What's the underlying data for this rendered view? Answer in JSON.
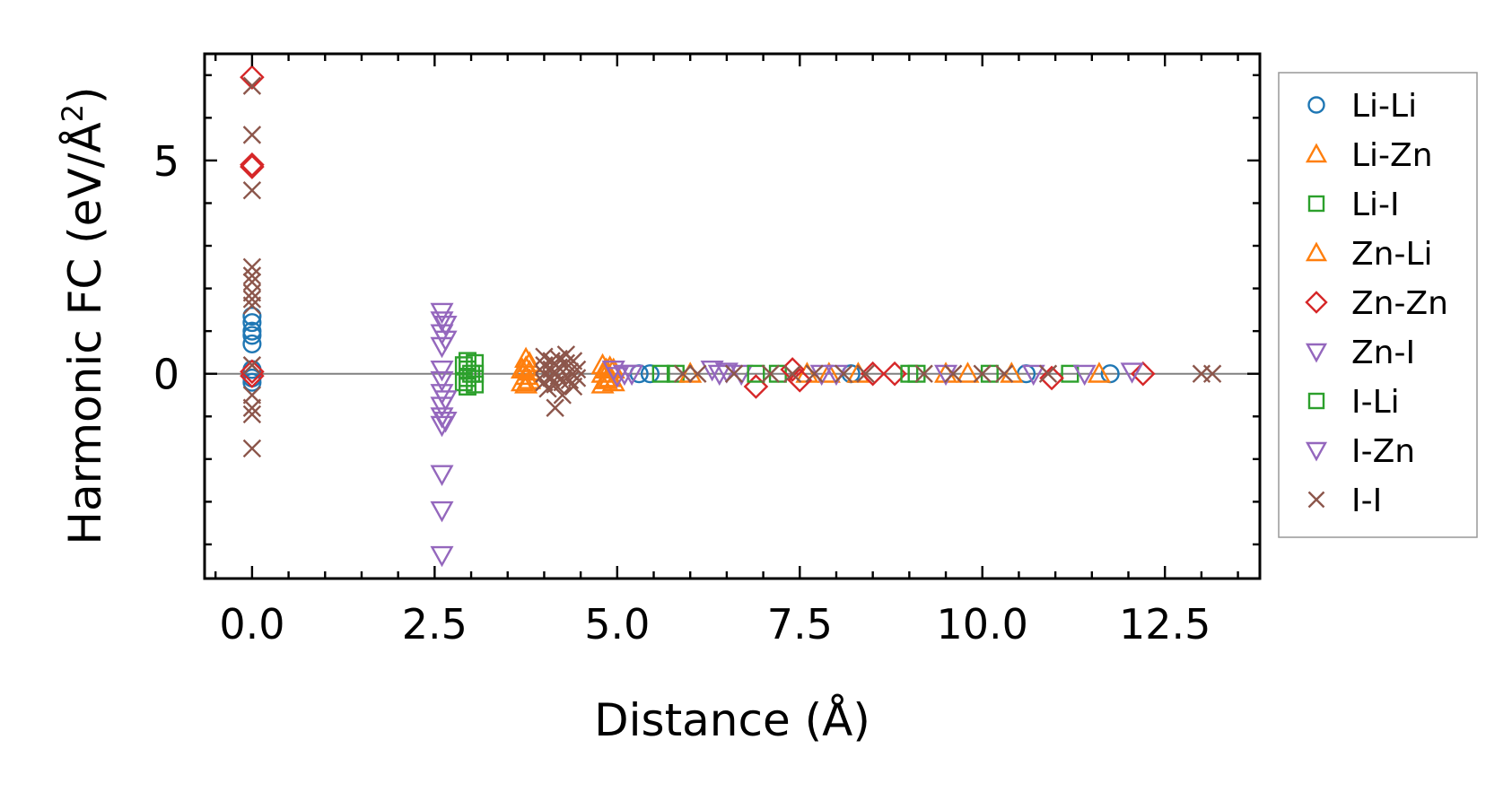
{
  "chart_data": {
    "type": "scatter",
    "xlabel": "Distance (Å)",
    "ylabel": {
      "prefix": "Harmonic FC (eV/Å",
      "sup": "2",
      "suffix": ")"
    },
    "xlim": [
      -0.65,
      13.8
    ],
    "ylim": [
      -4.8,
      7.5
    ],
    "xticks": [
      {
        "value": 0.0,
        "label": "0.0"
      },
      {
        "value": 2.5,
        "label": "2.5"
      },
      {
        "value": 5.0,
        "label": "5.0"
      },
      {
        "value": 7.5,
        "label": "7.5"
      },
      {
        "value": 10.0,
        "label": "10.0"
      },
      {
        "value": 12.5,
        "label": "12.5"
      }
    ],
    "yticks": [
      {
        "value": 0,
        "label": "0"
      },
      {
        "value": 5,
        "label": "5"
      }
    ],
    "legend_position": "outside-right",
    "zero_line": true,
    "series": [
      {
        "name": "Li-Li",
        "marker": "circle",
        "color": "#1f77b4",
        "points": [
          [
            0,
            1.35
          ],
          [
            0,
            1.2
          ],
          [
            0,
            1.0
          ],
          [
            0,
            0.9
          ],
          [
            0,
            0.7
          ],
          [
            0,
            0.1
          ],
          [
            0,
            -0.1
          ],
          [
            0,
            -0.2
          ],
          [
            5.3,
            0.0
          ],
          [
            5.45,
            0.0
          ],
          [
            8.2,
            0.0
          ],
          [
            10.6,
            0.0
          ],
          [
            11.75,
            0.0
          ]
        ]
      },
      {
        "name": "Li-Zn",
        "marker": "triangle-up",
        "color": "#ff7f0e",
        "points": [
          [
            3.75,
            0.35
          ],
          [
            3.75,
            0.15
          ],
          [
            3.75,
            -0.05
          ],
          [
            3.75,
            -0.25
          ],
          [
            3.8,
            0.25
          ],
          [
            3.8,
            0.05
          ],
          [
            3.8,
            -0.15
          ],
          [
            4.8,
            0.2
          ],
          [
            4.8,
            0.0
          ],
          [
            4.8,
            -0.25
          ],
          [
            4.85,
            0.1
          ],
          [
            4.85,
            -0.15
          ],
          [
            4.95,
            0.1
          ],
          [
            4.95,
            -0.2
          ],
          [
            7.9,
            0.0
          ],
          [
            8.3,
            0.0
          ],
          [
            9.5,
            0.0
          ],
          [
            10.4,
            0.0
          ],
          [
            11.6,
            0.0
          ]
        ]
      },
      {
        "name": "Li-I",
        "marker": "square",
        "color": "#2ca02c",
        "points": [
          [
            2.95,
            0.3
          ],
          [
            2.95,
            0.1
          ],
          [
            2.95,
            -0.1
          ],
          [
            2.95,
            -0.3
          ],
          [
            3.05,
            0.25
          ],
          [
            3.05,
            0.0
          ],
          [
            3.05,
            -0.25
          ],
          [
            5.6,
            0.0
          ],
          [
            5.8,
            0.0
          ],
          [
            7.2,
            0.0
          ],
          [
            9.1,
            0.0
          ],
          [
            11.2,
            0.0
          ]
        ]
      },
      {
        "name": "Zn-Li",
        "marker": "triangle-up",
        "color": "#ff7f0e",
        "points": [
          [
            3.7,
            0.1
          ],
          [
            3.7,
            -0.2
          ],
          [
            4.9,
            0.15
          ],
          [
            4.9,
            -0.1
          ],
          [
            6.0,
            0.0
          ],
          [
            7.6,
            0.0
          ],
          [
            9.8,
            0.0
          ]
        ]
      },
      {
        "name": "Zn-Zn",
        "marker": "diamond",
        "color": "#d62728",
        "points": [
          [
            0,
            6.95
          ],
          [
            0,
            4.9
          ],
          [
            0,
            4.85
          ],
          [
            0,
            0.05
          ],
          [
            0,
            -0.05
          ],
          [
            6.9,
            -0.3
          ],
          [
            7.4,
            0.1
          ],
          [
            7.5,
            -0.15
          ],
          [
            8.5,
            0.0
          ],
          [
            8.8,
            0.0
          ],
          [
            10.95,
            -0.1
          ],
          [
            12.2,
            0.0
          ]
        ]
      },
      {
        "name": "Zn-I",
        "marker": "triangle-down",
        "color": "#9467bd",
        "points": [
          [
            2.6,
            1.45
          ],
          [
            2.6,
            1.25
          ],
          [
            2.6,
            0.95
          ],
          [
            2.6,
            0.65
          ],
          [
            2.6,
            0.1
          ],
          [
            2.6,
            -0.15
          ],
          [
            2.6,
            -0.45
          ],
          [
            2.6,
            -0.75
          ],
          [
            2.6,
            -1.0
          ],
          [
            2.6,
            -1.2
          ],
          [
            2.6,
            -2.35
          ],
          [
            2.6,
            -3.2
          ],
          [
            2.6,
            -4.25
          ],
          [
            4.95,
            0.1
          ],
          [
            5.0,
            -0.05
          ],
          [
            5.1,
            0.0
          ],
          [
            6.3,
            0.1
          ],
          [
            6.5,
            0.05
          ],
          [
            6.7,
            0.0
          ],
          [
            8.0,
            0.0
          ],
          [
            9.5,
            0.0
          ],
          [
            11.4,
            0.0
          ],
          [
            12.05,
            0.05
          ]
        ]
      },
      {
        "name": "I-Li",
        "marker": "square",
        "color": "#2ca02c",
        "points": [
          [
            2.9,
            0.2
          ],
          [
            2.9,
            -0.2
          ],
          [
            3.0,
            0.0
          ],
          [
            6.9,
            0.0
          ],
          [
            9.0,
            0.0
          ],
          [
            10.1,
            0.0
          ]
        ]
      },
      {
        "name": "I-Zn",
        "marker": "triangle-down",
        "color": "#9467bd",
        "points": [
          [
            2.65,
            1.15
          ],
          [
            2.65,
            0.8
          ],
          [
            2.65,
            -0.6
          ],
          [
            2.65,
            -1.1
          ],
          [
            5.2,
            0.0
          ],
          [
            6.4,
            0.0
          ],
          [
            7.8,
            0.0
          ],
          [
            10.7,
            0.0
          ]
        ]
      },
      {
        "name": "I-I",
        "marker": "x",
        "color": "#8c564b",
        "points": [
          [
            0,
            6.75
          ],
          [
            0,
            5.6
          ],
          [
            0,
            4.3
          ],
          [
            0,
            2.5
          ],
          [
            0,
            2.3
          ],
          [
            0,
            2.15
          ],
          [
            0,
            1.9
          ],
          [
            0,
            1.75
          ],
          [
            0,
            1.6
          ],
          [
            0,
            0.2
          ],
          [
            0,
            -0.5
          ],
          [
            0,
            -0.8
          ],
          [
            0,
            -0.95
          ],
          [
            0,
            -1.75
          ],
          [
            4.0,
            0.4
          ],
          [
            4.0,
            0.2
          ],
          [
            4.0,
            0.0
          ],
          [
            4.0,
            -0.2
          ],
          [
            4.05,
            -0.35
          ],
          [
            4.1,
            0.3
          ],
          [
            4.1,
            0.1
          ],
          [
            4.1,
            -0.1
          ],
          [
            4.15,
            -0.25
          ],
          [
            4.2,
            0.35
          ],
          [
            4.2,
            0.15
          ],
          [
            4.2,
            -0.05
          ],
          [
            4.25,
            -0.2
          ],
          [
            4.25,
            -0.5
          ],
          [
            4.15,
            -0.8
          ],
          [
            4.3,
            0.45
          ],
          [
            4.3,
            0.25
          ],
          [
            4.35,
            0.05
          ],
          [
            4.35,
            -0.15
          ],
          [
            4.4,
            0.3
          ],
          [
            4.4,
            -0.3
          ],
          [
            4.45,
            0.1
          ],
          [
            4.45,
            -0.1
          ],
          [
            5.9,
            0.0
          ],
          [
            6.1,
            0.0
          ],
          [
            6.6,
            0.0
          ],
          [
            7.1,
            0.0
          ],
          [
            7.4,
            0.0
          ],
          [
            7.7,
            0.0
          ],
          [
            8.1,
            0.0
          ],
          [
            8.4,
            0.0
          ],
          [
            9.2,
            0.0
          ],
          [
            9.6,
            0.0
          ],
          [
            10.0,
            0.0
          ],
          [
            10.3,
            0.0
          ],
          [
            10.9,
            0.0
          ],
          [
            13.0,
            0.0
          ],
          [
            13.15,
            0.0
          ]
        ]
      }
    ]
  }
}
